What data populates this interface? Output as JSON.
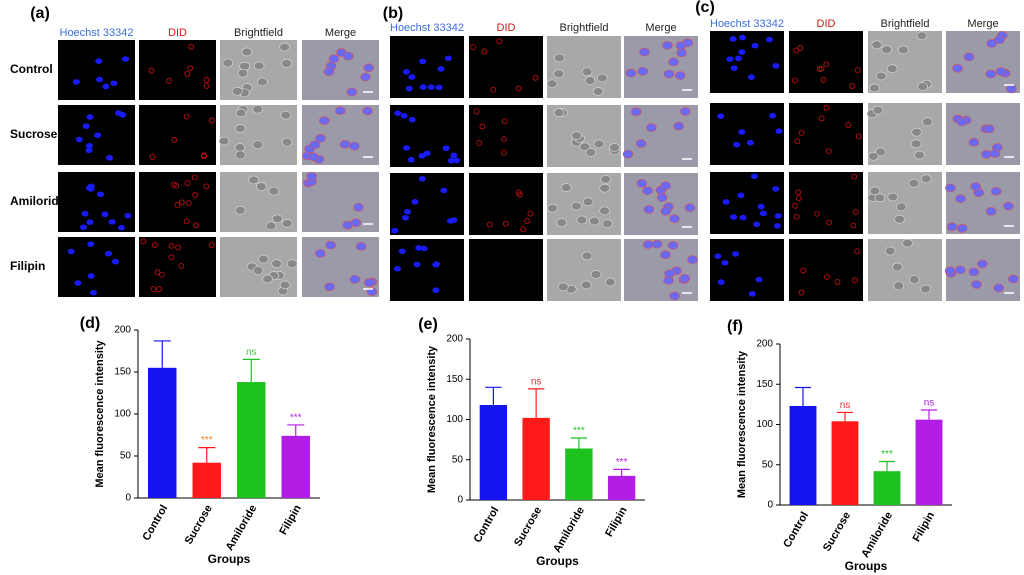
{
  "image_panels": [
    {
      "label": "(a)",
      "columns": [
        "Hoechst 33342",
        "DID",
        "Brightfield",
        "Merge"
      ],
      "rows": [
        "Control",
        "Sucrose",
        "Amiloride",
        "Filipin"
      ]
    },
    {
      "label": "(b)",
      "columns": [
        "Hoechst 33342",
        "DID",
        "Brightfield",
        "Merge"
      ]
    },
    {
      "label": "(c)",
      "columns": [
        "Hoechst 33342",
        "DID",
        "Brightfield",
        "Merge"
      ]
    }
  ],
  "chart_data": [
    {
      "type": "bar",
      "label": "(d)",
      "y_label": "Mean fluorescence intensity",
      "x_label": "Groups",
      "categories": [
        "Control",
        "Sucrose",
        "Amiloride",
        "Filipin"
      ],
      "values": [
        155,
        42,
        138,
        74
      ],
      "errors": [
        32,
        18,
        27,
        13
      ],
      "colors": [
        "#1414ee",
        "#ff1a1a",
        "#1ec21e",
        "#b21ee6"
      ],
      "annotations": [
        null,
        "***",
        "ns",
        "***"
      ],
      "annotation_colors": [
        null,
        "#f07a18",
        "#3cc83c",
        "#b21ee6"
      ],
      "ylim": [
        0,
        200
      ],
      "yticks": [
        0,
        50,
        100,
        150,
        200
      ]
    },
    {
      "type": "bar",
      "label": "(e)",
      "y_label": "Mean fluorescence intensity",
      "x_label": "Groups",
      "categories": [
        "Control",
        "Sucrose",
        "Amiloride",
        "Filipin"
      ],
      "values": [
        118,
        102,
        64,
        30
      ],
      "errors": [
        22,
        36,
        13,
        8
      ],
      "colors": [
        "#1414ee",
        "#ff1a1a",
        "#1ec21e",
        "#b21ee6"
      ],
      "annotations": [
        null,
        "ns",
        "***",
        "***"
      ],
      "annotation_colors": [
        null,
        "#e0303a",
        "#1ec21e",
        "#b21ee6"
      ],
      "ylim": [
        0,
        200
      ],
      "yticks": [
        0,
        50,
        100,
        150,
        200
      ]
    },
    {
      "type": "bar",
      "label": "(f)",
      "y_label": "Mean fluorescence intensity",
      "x_label": "Groups",
      "categories": [
        "Control",
        "Sucrose",
        "Amiloride",
        "Filipin"
      ],
      "values": [
        123,
        104,
        42,
        106
      ],
      "errors": [
        23,
        11,
        12,
        12
      ],
      "colors": [
        "#1414ee",
        "#ff1a1a",
        "#1ec21e",
        "#b21ee6"
      ],
      "annotations": [
        null,
        "ns",
        "***",
        "ns"
      ],
      "annotation_colors": [
        null,
        "#e0303a",
        "#1ec21e",
        "#b21ee6"
      ],
      "ylim": [
        0,
        200
      ],
      "yticks": [
        0,
        50,
        100,
        150,
        200
      ]
    }
  ]
}
